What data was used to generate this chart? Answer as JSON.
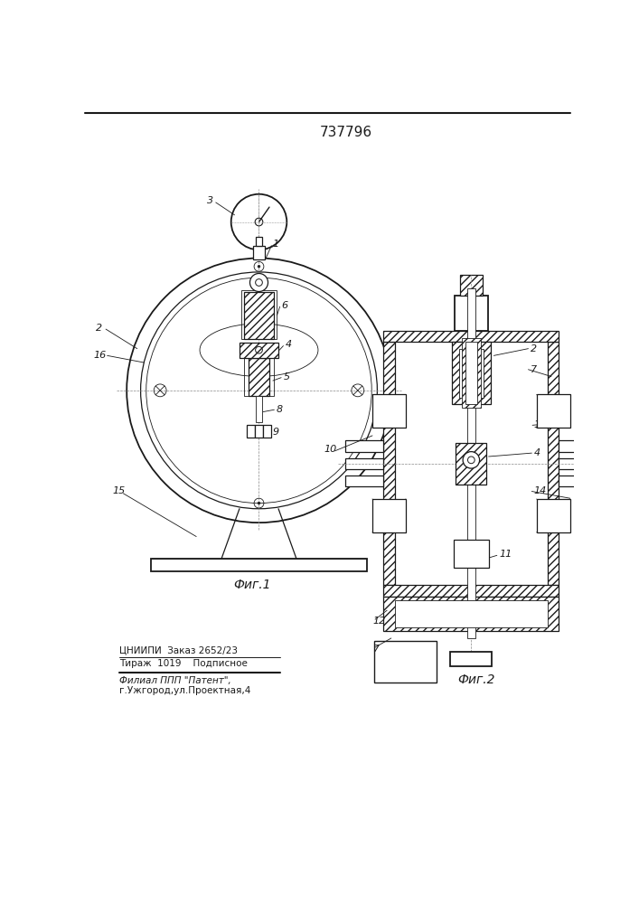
{
  "title": "737796",
  "fig1_label": "Фиг.1",
  "fig2_label": "Фиг.2",
  "footer_line1": "ЦНИИПИ  Заказ 2652/23",
  "footer_line2": "Тираж  1019    Подписное",
  "footer_line3": "Филиал ППП \"Патент\",",
  "footer_line4": "г.Ужгород,ул.Проектная,4",
  "bg_color": "#ffffff",
  "line_color": "#1a1a1a"
}
